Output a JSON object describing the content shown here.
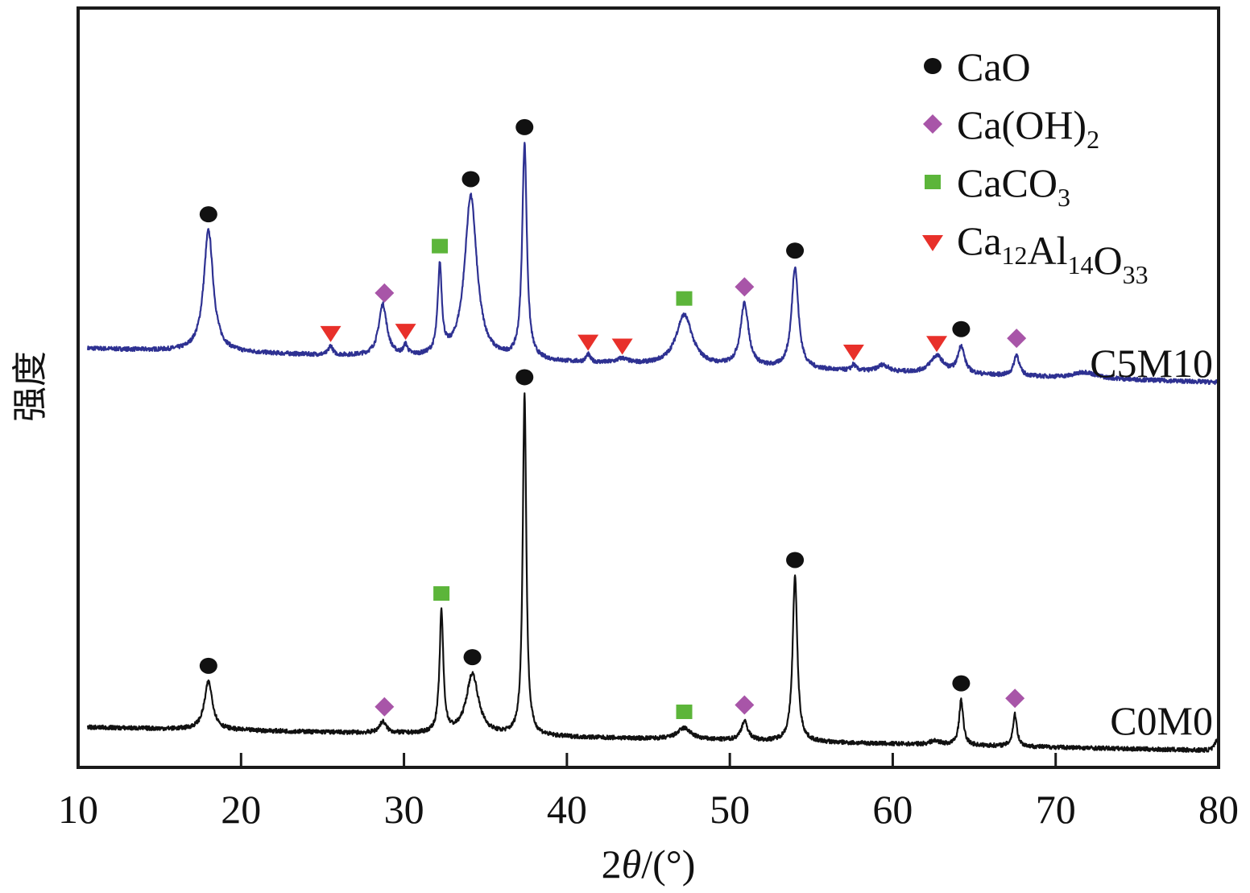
{
  "chart_data": {
    "type": "line",
    "title": "",
    "xlabel": "2θ/(°)",
    "xlabel_parts": {
      "prefix": "2",
      "theta": "θ",
      "suffix": "/(°)"
    },
    "ylabel": "强度",
    "xlim": [
      10,
      80
    ],
    "ylim": [
      0,
      100
    ],
    "xticks": [
      10,
      20,
      30,
      40,
      50,
      60,
      70,
      80
    ],
    "yticks_shown": false,
    "grid": false,
    "legend_position": "top-right",
    "legend": [
      {
        "phase": "CaO",
        "marker": "circle",
        "color": "#111111",
        "label_main": "CaO",
        "label_parts": [
          [
            "CaO",
            ""
          ]
        ]
      },
      {
        "phase": "Ca(OH)2",
        "marker": "diamond",
        "color": "#a855a8",
        "label_parts": [
          [
            "Ca(OH)",
            ""
          ],
          [
            "",
            "2"
          ]
        ]
      },
      {
        "phase": "CaCO3",
        "marker": "square",
        "color": "#5cb53a",
        "label_parts": [
          [
            "CaCO",
            ""
          ],
          [
            "",
            "3"
          ]
        ]
      },
      {
        "phase": "Ca12Al14O33",
        "marker": "triangle-down",
        "color": "#e8302a",
        "label_parts": [
          [
            "Ca",
            ""
          ],
          [
            "",
            "12"
          ],
          [
            "Al",
            ""
          ],
          [
            "",
            "14"
          ],
          [
            "O",
            ""
          ],
          [
            "",
            "33"
          ]
        ]
      }
    ],
    "series": [
      {
        "name": "C5M10",
        "color": "#2e3192",
        "baseline_start": 55.2,
        "baseline_end": 50.7,
        "peaks": [
          {
            "x": 18.0,
            "height": 16.0,
            "width": 0.35
          },
          {
            "x": 25.5,
            "height": 1.2,
            "width": 0.15
          },
          {
            "x": 28.7,
            "height": 6.8,
            "width": 0.3
          },
          {
            "x": 30.1,
            "height": 1.3,
            "width": 0.15
          },
          {
            "x": 32.2,
            "height": 11.5,
            "width": 0.15
          },
          {
            "x": 34.1,
            "height": 21.5,
            "width": 0.45
          },
          {
            "x": 37.4,
            "height": 28.3,
            "width": 0.17
          },
          {
            "x": 41.3,
            "height": 1.0,
            "width": 0.15
          },
          {
            "x": 43.4,
            "height": 0.6,
            "width": 0.4
          },
          {
            "x": 47.2,
            "height": 6.7,
            "width": 0.6
          },
          {
            "x": 50.9,
            "height": 8.3,
            "width": 0.3
          },
          {
            "x": 54.0,
            "height": 13.4,
            "width": 0.25
          },
          {
            "x": 57.6,
            "height": 0.8,
            "width": 0.15
          },
          {
            "x": 59.4,
            "height": 0.9,
            "width": 0.4
          },
          {
            "x": 62.7,
            "height": 2.3,
            "width": 0.5
          },
          {
            "x": 64.2,
            "height": 3.6,
            "width": 0.25
          },
          {
            "x": 67.6,
            "height": 2.8,
            "width": 0.2
          },
          {
            "x": 71.8,
            "height": 0.8,
            "width": 0.8
          }
        ],
        "label": "C5M10"
      },
      {
        "name": "C0M0",
        "color": "#111111",
        "baseline_start": 5.3,
        "baseline_end": 2.2,
        "peaks": [
          {
            "x": 18.0,
            "height": 6.3,
            "width": 0.3
          },
          {
            "x": 28.7,
            "height": 1.5,
            "width": 0.25
          },
          {
            "x": 32.3,
            "height": 16.0,
            "width": 0.14
          },
          {
            "x": 34.2,
            "height": 8.0,
            "width": 0.45
          },
          {
            "x": 37.4,
            "height": 45.0,
            "width": 0.13
          },
          {
            "x": 47.2,
            "height": 1.5,
            "width": 0.5
          },
          {
            "x": 50.9,
            "height": 2.5,
            "width": 0.25
          },
          {
            "x": 54.0,
            "height": 21.8,
            "width": 0.17
          },
          {
            "x": 62.6,
            "height": 0.5,
            "width": 0.4
          },
          {
            "x": 64.2,
            "height": 6.0,
            "width": 0.15
          },
          {
            "x": 67.5,
            "height": 4.2,
            "width": 0.15
          },
          {
            "x": 79.9,
            "height": 1.5,
            "width": 0.15
          }
        ],
        "label": "C0M0"
      }
    ],
    "annotations": [
      {
        "series": "C5M10",
        "x": 18.0,
        "phase": "CaO"
      },
      {
        "series": "C5M10",
        "x": 25.5,
        "phase": "Ca12Al14O33"
      },
      {
        "series": "C5M10",
        "x": 28.8,
        "phase": "Ca(OH)2"
      },
      {
        "series": "C5M10",
        "x": 30.1,
        "phase": "Ca12Al14O33"
      },
      {
        "series": "C5M10",
        "x": 32.2,
        "phase": "CaCO3"
      },
      {
        "series": "C5M10",
        "x": 34.1,
        "phase": "CaO"
      },
      {
        "series": "C5M10",
        "x": 37.4,
        "phase": "CaO"
      },
      {
        "series": "C5M10",
        "x": 41.3,
        "phase": "Ca12Al14O33"
      },
      {
        "series": "C5M10",
        "x": 43.4,
        "phase": "Ca12Al14O33"
      },
      {
        "series": "C5M10",
        "x": 47.2,
        "phase": "CaCO3"
      },
      {
        "series": "C5M10",
        "x": 50.9,
        "phase": "Ca(OH)2"
      },
      {
        "series": "C5M10",
        "x": 54.0,
        "phase": "CaO"
      },
      {
        "series": "C5M10",
        "x": 57.6,
        "phase": "Ca12Al14O33"
      },
      {
        "series": "C5M10",
        "x": 62.7,
        "phase": "Ca12Al14O33"
      },
      {
        "series": "C5M10",
        "x": 64.2,
        "phase": "CaO"
      },
      {
        "series": "C5M10",
        "x": 67.6,
        "phase": "Ca(OH)2"
      },
      {
        "series": "C0M0",
        "x": 18.0,
        "phase": "CaO"
      },
      {
        "series": "C0M0",
        "x": 28.8,
        "phase": "Ca(OH)2"
      },
      {
        "series": "C0M0",
        "x": 32.3,
        "phase": "CaCO3"
      },
      {
        "series": "C0M0",
        "x": 34.2,
        "phase": "CaO"
      },
      {
        "series": "C0M0",
        "x": 37.4,
        "phase": "CaO"
      },
      {
        "series": "C0M0",
        "x": 47.2,
        "phase": "CaCO3"
      },
      {
        "series": "C0M0",
        "x": 50.9,
        "phase": "Ca(OH)2"
      },
      {
        "series": "C0M0",
        "x": 54.0,
        "phase": "CaO"
      },
      {
        "series": "C0M0",
        "x": 64.2,
        "phase": "CaO"
      },
      {
        "series": "C0M0",
        "x": 67.5,
        "phase": "Ca(OH)2"
      }
    ]
  }
}
